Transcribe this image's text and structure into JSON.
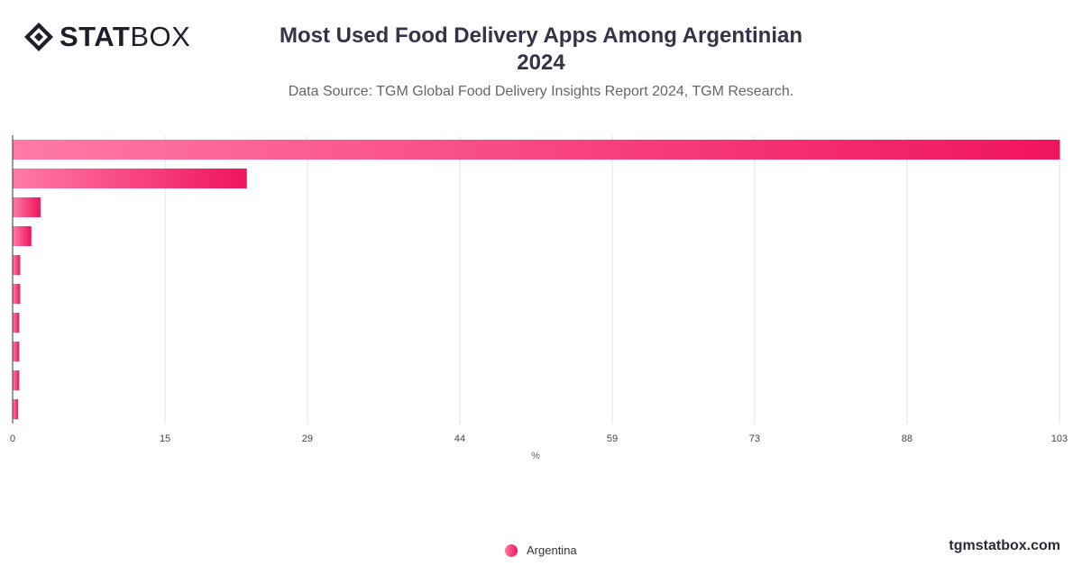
{
  "brand": {
    "logo_bold": "STAT",
    "logo_light": "BOX",
    "website": "tgmstatbox.com"
  },
  "header": {
    "title_line1": "Most Used Food Delivery Apps Among Argentinian",
    "title_line2": "2024",
    "subtitle": "Data Source: TGM Global Food Delivery Insights Report 2024, TGM Research."
  },
  "chart_data": {
    "type": "bar",
    "orientation": "horizontal",
    "categories": [
      "",
      "",
      "",
      "",
      "",
      "",
      "",
      "",
      "",
      ""
    ],
    "series": [
      {
        "name": "Argentina",
        "values": [
          103,
          23,
          2.7,
          1.8,
          0.7,
          0.7,
          0.6,
          0.6,
          0.6,
          0.5
        ]
      }
    ],
    "xlabel": "%",
    "ylabel": "",
    "xlim": [
      0,
      103
    ],
    "xticks": [
      0,
      15,
      29,
      44,
      59,
      73,
      88,
      103
    ],
    "grid": true,
    "legend_position": "bottom-center",
    "colors": {
      "bar_start": "#ff7aa6",
      "bar_end": "#f0145c",
      "grid": "#e3e3e3",
      "axis": "#333333"
    }
  }
}
